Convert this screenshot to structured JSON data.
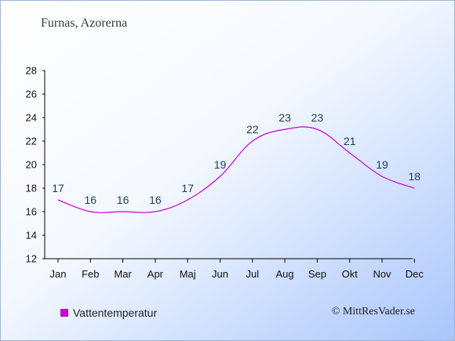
{
  "page": {
    "title": "Furnas, Azorerna",
    "credit": "© MittResVader.se"
  },
  "chart_data": {
    "type": "line",
    "categories": [
      "Jan",
      "Feb",
      "Mar",
      "Apr",
      "Maj",
      "Jun",
      "Jul",
      "Aug",
      "Sep",
      "Okt",
      "Nov",
      "Dec"
    ],
    "series": [
      {
        "name": "Vattentemperatur",
        "values": [
          17,
          16,
          16,
          16,
          17,
          19,
          22,
          23,
          23,
          21,
          19,
          18
        ],
        "color": "#cc00cc"
      }
    ],
    "yticks": [
      "12",
      "14",
      "16",
      "18",
      "20",
      "22",
      "24",
      "26",
      "28"
    ],
    "ylim": [
      12,
      28
    ],
    "grid": false,
    "legend": "bottom-left",
    "label_color": "#1f3a5a",
    "axis_color": "#000000"
  }
}
